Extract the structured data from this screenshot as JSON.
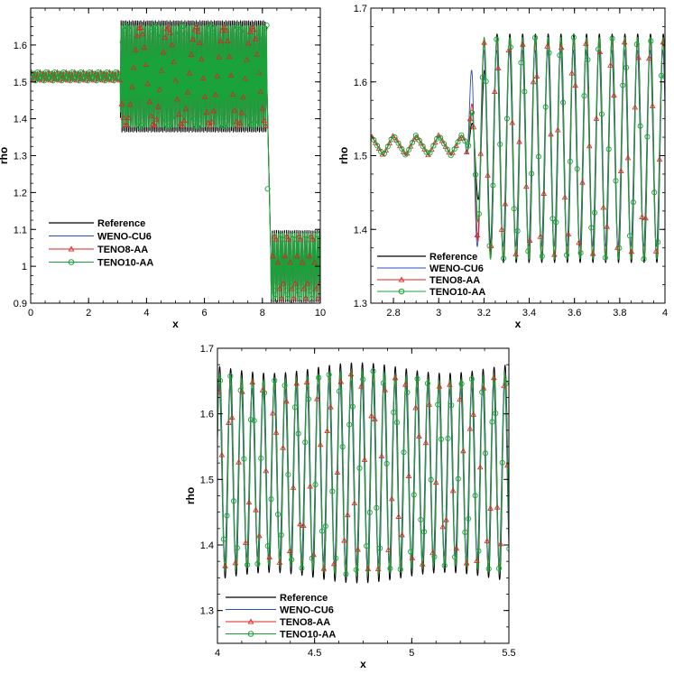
{
  "colors": {
    "reference": "#000000",
    "weno_cu6": "#2a4fbf",
    "teno8_aa": "#e02020",
    "teno10_aa": "#1aa33a"
  },
  "chart_data": [
    {
      "type": "line",
      "title": "",
      "xlabel": "x",
      "ylabel": "rho",
      "xlim": [
        0,
        10
      ],
      "ylim": [
        0.9,
        1.7
      ],
      "xticks": [
        0,
        2,
        4,
        6,
        8,
        10
      ],
      "yticks": [
        0.9,
        1,
        1.1,
        1.2,
        1.3,
        1.4,
        1.5,
        1.6
      ],
      "ytick_labels": [
        "0.9",
        "1",
        "1.1",
        "1.2",
        "1.3",
        "1.4",
        "1.5",
        "1.6"
      ],
      "legend_position": "lower-left",
      "legend_entries": [
        "Reference",
        "WENO-CU6",
        "TENO8-AA",
        "TENO10-AA"
      ],
      "features": {
        "pre_shock_mean": 1.515,
        "pre_shock_amplitude": 0.012,
        "shock_start_x": 3.1,
        "post_shock_mean": 1.515,
        "post_shock_amplitude": 0.14,
        "shock_end_x": 8.15,
        "downstream_mean": 1.0,
        "downstream_amplitude": 0.09,
        "downstream_start_x": 8.3
      }
    },
    {
      "type": "line",
      "title": "",
      "xlabel": "x",
      "ylabel": "rho",
      "xlim": [
        2.7,
        4
      ],
      "ylim": [
        1.3,
        1.7
      ],
      "xticks": [
        2.8,
        3,
        3.2,
        3.4,
        3.6,
        3.8,
        4
      ],
      "xtick_labels": [
        "2.8",
        "3",
        "3.2",
        "3.4",
        "3.6",
        "3.8",
        "4"
      ],
      "yticks": [
        1.3,
        1.4,
        1.5,
        1.6,
        1.7
      ],
      "legend_position": "lower-left",
      "legend_entries": [
        "Reference",
        "WENO-CU6",
        "TENO8-AA",
        "TENO10-AA"
      ],
      "features": {
        "sawtooth_period": 0.1,
        "sawtooth_range": [
          1.5,
          1.528
        ],
        "shock_x": 3.12,
        "oscillation_period": 0.0565,
        "reference_mean": 1.51,
        "reference_amplitude": 0.155
      }
    },
    {
      "type": "line",
      "title": "",
      "xlabel": "x",
      "ylabel": "rho",
      "xlim": [
        4,
        5.5
      ],
      "ylim": [
        1.25,
        1.7
      ],
      "xticks": [
        4,
        4.5,
        5,
        5.5
      ],
      "yticks": [
        1.3,
        1.4,
        1.5,
        1.6,
        1.7
      ],
      "legend_position": "lower-left",
      "legend_entries": [
        "Reference",
        "WENO-CU6",
        "TENO8-AA",
        "TENO10-AA"
      ],
      "features": {
        "oscillation_period": 0.0565,
        "reference_mean": 1.51,
        "reference_amplitude": 0.16
      }
    }
  ]
}
